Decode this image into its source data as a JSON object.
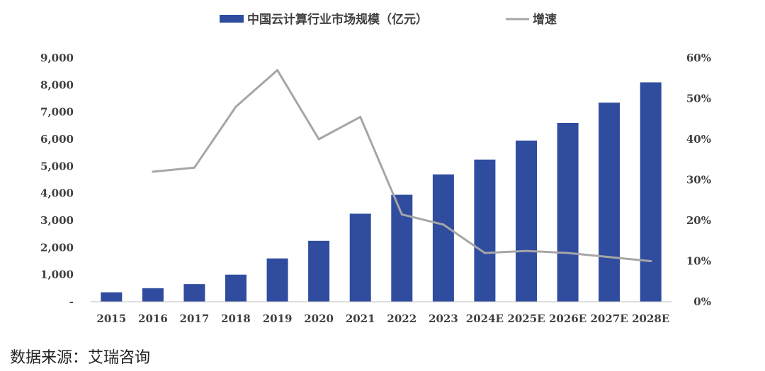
{
  "chart_data": {
    "type": "bar",
    "categories": [
      "2015",
      "2016",
      "2017",
      "2018",
      "2019",
      "2020",
      "2021",
      "2022",
      "2023",
      "2024E",
      "2025E",
      "2026E",
      "2027E",
      "2028E"
    ],
    "series": [
      {
        "name": "中国云计算行业市场规模（亿元）",
        "type": "bar",
        "axis": "left",
        "color": "#2F4C9F",
        "values": [
          350,
          500,
          650,
          1000,
          1600,
          2250,
          3250,
          3950,
          4700,
          5250,
          5950,
          6600,
          7350,
          8100
        ]
      },
      {
        "name": "增速",
        "type": "line",
        "axis": "right",
        "color": "#A6A6A6",
        "values": [
          null,
          0.32,
          0.33,
          0.48,
          0.57,
          0.4,
          0.455,
          0.215,
          0.19,
          0.12,
          0.125,
          0.12,
          0.11,
          0.1
        ]
      }
    ],
    "left_axis": {
      "ylim": [
        0,
        9000
      ],
      "ticks": [
        {
          "value": 0,
          "label": "-"
        },
        {
          "value": 1000,
          "label": "1,000"
        },
        {
          "value": 2000,
          "label": "2,000"
        },
        {
          "value": 3000,
          "label": "3,000"
        },
        {
          "value": 4000,
          "label": "4,000"
        },
        {
          "value": 5000,
          "label": "5,000"
        },
        {
          "value": 6000,
          "label": "6,000"
        },
        {
          "value": 7000,
          "label": "7,000"
        },
        {
          "value": 8000,
          "label": "8,000"
        },
        {
          "value": 9000,
          "label": "9,000"
        }
      ]
    },
    "right_axis": {
      "ylim": [
        0,
        0.6
      ],
      "ticks": [
        {
          "value": 0,
          "label": "0%"
        },
        {
          "value": 0.1,
          "label": "10%"
        },
        {
          "value": 0.2,
          "label": "20%"
        },
        {
          "value": 0.3,
          "label": "30%"
        },
        {
          "value": 0.4,
          "label": "40%"
        },
        {
          "value": 0.5,
          "label": "50%"
        },
        {
          "value": 0.6,
          "label": "60%"
        }
      ]
    },
    "grid": false,
    "legend": "top-center"
  },
  "source_note": "数据来源：艾瑞咨询"
}
